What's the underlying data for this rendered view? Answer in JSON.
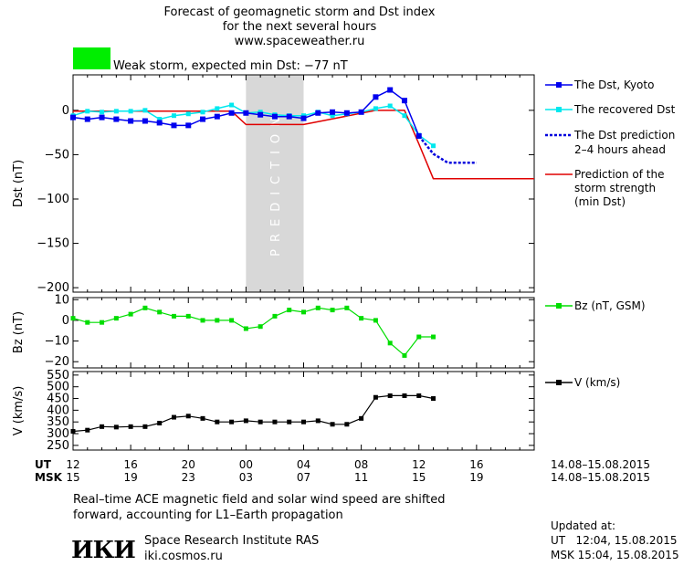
{
  "header": {
    "title_line1": "Forecast of geomagnetic storm and Dst index",
    "title_line2": "for the next several hours",
    "website": "www.spaceweather.ru",
    "storm_label": "Weak storm, expected min Dst: −77 nT",
    "storm_color": "#00ee00"
  },
  "colors": {
    "dst_kyoto": "#0000ee",
    "dst_recovered": "#00e8ee",
    "dst_prediction": "#0000dd",
    "storm_strength": "#e00000",
    "bz": "#00dd00",
    "speed": "#000000",
    "prediction_band": "#d8d8d8"
  },
  "chart_data": [
    {
      "type": "line",
      "x_unit": "hours since 12:00 UT 14.08.2015",
      "ylabel": "Dst (nT)",
      "ylim": [
        -205,
        40
      ],
      "yticks": [
        0,
        -50,
        -100,
        -150,
        -200
      ],
      "band_label": "PREDICTION",
      "prediction_band_x": [
        12,
        16
      ],
      "series": [
        {
          "name": "The Dst, Kyoto",
          "x": [
            0,
            1,
            2,
            3,
            4,
            5,
            6,
            7,
            8,
            9,
            10,
            11,
            12,
            13,
            14,
            15,
            16,
            17,
            18,
            19,
            20,
            21,
            22,
            23,
            24
          ],
          "y": [
            -8,
            -10,
            -8,
            -10,
            -12,
            -12,
            -14,
            -17,
            -17,
            -10,
            -7,
            -3,
            -3,
            -5,
            -7,
            -7,
            -9,
            -3,
            -2,
            -3,
            -2,
            15,
            23,
            11,
            -29
          ]
        },
        {
          "name": "The recovered Dst",
          "x": [
            0,
            1,
            2,
            3,
            4,
            5,
            6,
            7,
            8,
            9,
            10,
            11,
            12,
            13,
            14,
            15,
            16,
            17,
            18,
            19,
            20,
            21,
            22,
            23,
            24,
            25
          ],
          "y": [
            -6,
            -1,
            -2,
            -1,
            -1,
            0,
            -10,
            -6,
            -4,
            -2,
            2,
            6,
            -3,
            -2,
            -5,
            -6,
            -6,
            -2,
            -6,
            -4,
            -2,
            2,
            5,
            -6,
            -28,
            -40
          ]
        },
        {
          "name": "The Dst prediction",
          "name_line2": "2–4 hours ahead",
          "x": [
            24,
            25,
            26,
            27,
            28
          ],
          "y": [
            -29,
            -49,
            -59,
            -59,
            -59
          ]
        },
        {
          "name": "Prediction of the",
          "name_line2": "storm strength",
          "name_line3": "(min Dst)",
          "x": [
            0,
            11,
            12,
            16,
            21,
            22,
            23,
            24,
            25,
            26,
            27,
            28,
            29,
            30,
            31,
            32
          ],
          "y": [
            -1,
            -1,
            -16,
            -16,
            0,
            0,
            0,
            -38,
            -77,
            -77,
            -77,
            -77,
            -77,
            -77,
            -77,
            -77
          ]
        }
      ]
    },
    {
      "type": "line",
      "ylabel": "Bz (nT)",
      "ylim": [
        -23,
        11
      ],
      "yticks": [
        10,
        0,
        -10,
        -20
      ],
      "series": [
        {
          "name": "Bz (nT, GSM)",
          "x": [
            0,
            1,
            2,
            3,
            4,
            5,
            6,
            7,
            8,
            9,
            10,
            11,
            12,
            13,
            14,
            15,
            16,
            17,
            18,
            19,
            20,
            21,
            22,
            23,
            24,
            25
          ],
          "y": [
            1,
            -1,
            -1,
            1,
            3,
            6,
            4,
            2,
            2,
            0,
            0,
            0,
            -4,
            -3,
            2,
            5,
            4,
            6,
            5,
            6,
            1,
            0,
            -11,
            -17,
            -8,
            -8
          ]
        }
      ]
    },
    {
      "type": "line",
      "ylabel": "V (km/s)",
      "ylim": [
        230,
        565
      ],
      "yticks": [
        550,
        500,
        450,
        400,
        350,
        300,
        250
      ],
      "series": [
        {
          "name": "V (km/s)",
          "x": [
            0,
            1,
            2,
            3,
            4,
            5,
            6,
            7,
            8,
            9,
            10,
            11,
            12,
            13,
            14,
            15,
            16,
            17,
            18,
            19,
            20,
            21,
            22,
            23,
            24,
            25
          ],
          "y": [
            310,
            315,
            330,
            328,
            330,
            330,
            345,
            370,
            375,
            365,
            350,
            350,
            355,
            350,
            350,
            350,
            350,
            355,
            340,
            340,
            365,
            455,
            462,
            462,
            462,
            450
          ]
        }
      ]
    }
  ],
  "axis": {
    "ut_label": "UT",
    "msk_label": "MSK",
    "ut_ticks": [
      "12",
      "16",
      "20",
      "00",
      "04",
      "08",
      "12",
      "16"
    ],
    "msk_ticks": [
      "15",
      "19",
      "23",
      "03",
      "07",
      "11",
      "15",
      "19"
    ],
    "date_range_ut": "14.08–15.08.2015",
    "date_range_msk": "14.08–15.08.2015"
  },
  "footer": {
    "note_line1": "Real–time ACE magnetic field and solar wind speed are shifted",
    "note_line2": "forward, accounting for L1–Earth propagation",
    "logo_text": "ИКИ",
    "institute": "Space Research Institute RAS",
    "institute_site": "iki.cosmos.ru",
    "updated_label": "Updated at:",
    "updated_ut": "UT   12:04, 15.08.2015",
    "updated_msk": "MSK 15:04, 15.08.2015"
  }
}
